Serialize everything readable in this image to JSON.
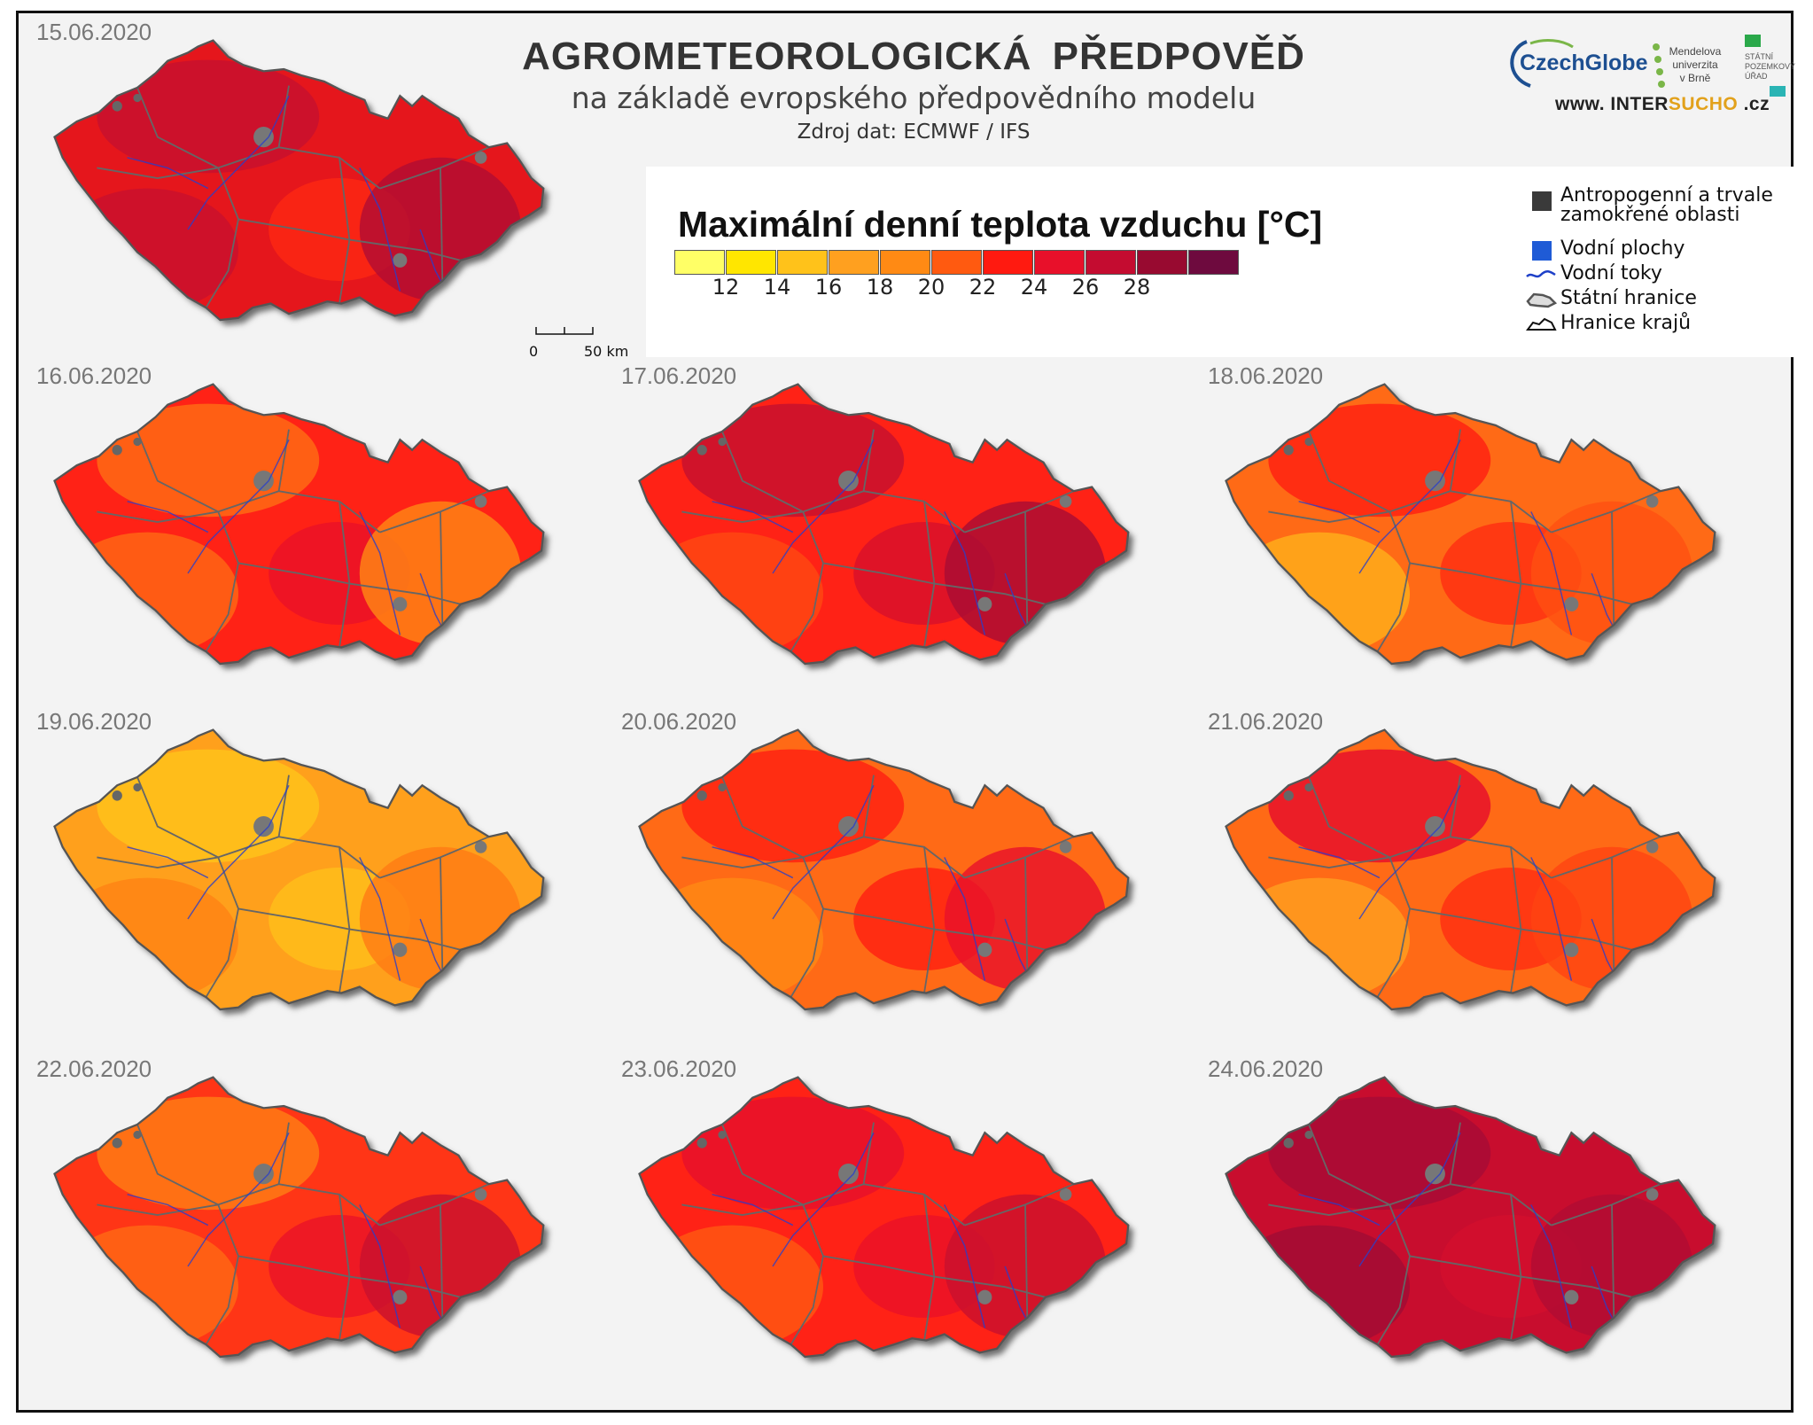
{
  "header": {
    "title": "AGROMETEOROLOGICKÁ  PŘEDPOVĚĎ",
    "subtitle": "na základě evropského předpovědního modelu",
    "source": "Zdroj dat: ECMWF / IFS"
  },
  "logos": {
    "czechglobe": "CzechGlobe",
    "mendel": "Mendelova univerzita v Brně",
    "spu": "STÁTNÍ POZEMKOVÝ ÚŘAD",
    "website_prefix": "www. INTER",
    "website_accent": "SUCHO",
    "website_suffix": " .cz"
  },
  "legend": {
    "title": "Maximální denní teplota vzduchu [°C]",
    "scale_colors": [
      "#ffff66",
      "#ffe600",
      "#ffc21a",
      "#ffa01f",
      "#ff8a14",
      "#ff5a10",
      "#ff1a10",
      "#e8102a",
      "#c40c30",
      "#980a30",
      "#6e0a3e"
    ],
    "tick_labels": [
      "12",
      "14",
      "16",
      "18",
      "20",
      "22",
      "24",
      "26",
      "28"
    ],
    "items": [
      {
        "label": "Antropogenní a trvale zamokřené oblasti",
        "icon": "gray-square-icon",
        "color": "#3a3a3a"
      },
      {
        "label": "Vodní plochy",
        "icon": "blue-square-icon",
        "color": "#1f5bd6"
      },
      {
        "label": "Vodní toky",
        "icon": "river-line-icon",
        "color": "#1e40c8"
      },
      {
        "label": "Státní hranice",
        "icon": "country-border-icon",
        "color": "#555555"
      },
      {
        "label": "Hranice krajů",
        "icon": "region-border-icon",
        "color": "#111111"
      }
    ],
    "scale_bar": {
      "start": "0",
      "end": "50 km"
    }
  },
  "maps": [
    {
      "date": "15.06.2020",
      "base": "#e5181f",
      "patches": [
        "#c8102e",
        "#c8102e",
        "#ff2a12",
        "#b00d33"
      ]
    },
    {
      "date": "16.06.2020",
      "base": "#ff2212",
      "patches": [
        "#ff6a14",
        "#ff6a14",
        "#e8102a",
        "#ff8a14"
      ]
    },
    {
      "date": "17.06.2020",
      "base": "#ff2212",
      "patches": [
        "#c8102e",
        "#ff4a12",
        "#d40f2d",
        "#a80c35"
      ]
    },
    {
      "date": "18.06.2020",
      "base": "#ff6a14",
      "patches": [
        "#ff2212",
        "#ffb01a",
        "#ff2a12",
        "#ff5012"
      ]
    },
    {
      "date": "19.06.2020",
      "base": "#ffa01f",
      "patches": [
        "#ffc21a",
        "#ff8214",
        "#ffc21a",
        "#ff7a14"
      ]
    },
    {
      "date": "20.06.2020",
      "base": "#ff6a14",
      "patches": [
        "#ff2212",
        "#ff8a14",
        "#ff1a12",
        "#e8102a"
      ]
    },
    {
      "date": "21.06.2020",
      "base": "#ff6a14",
      "patches": [
        "#e8102a",
        "#ffa01f",
        "#ff2a12",
        "#ff4412"
      ]
    },
    {
      "date": "22.06.2020",
      "base": "#ff3512",
      "patches": [
        "#ff7a14",
        "#ff6a14",
        "#e8102a",
        "#c8102e"
      ]
    },
    {
      "date": "23.06.2020",
      "base": "#ff2212",
      "patches": [
        "#e8102a",
        "#ff5a12",
        "#e8102a",
        "#c8102e"
      ]
    },
    {
      "date": "24.06.2020",
      "base": "#c8102e",
      "patches": [
        "#a80c35",
        "#a00c35",
        "#d40f2d",
        "#b00d33"
      ]
    }
  ]
}
